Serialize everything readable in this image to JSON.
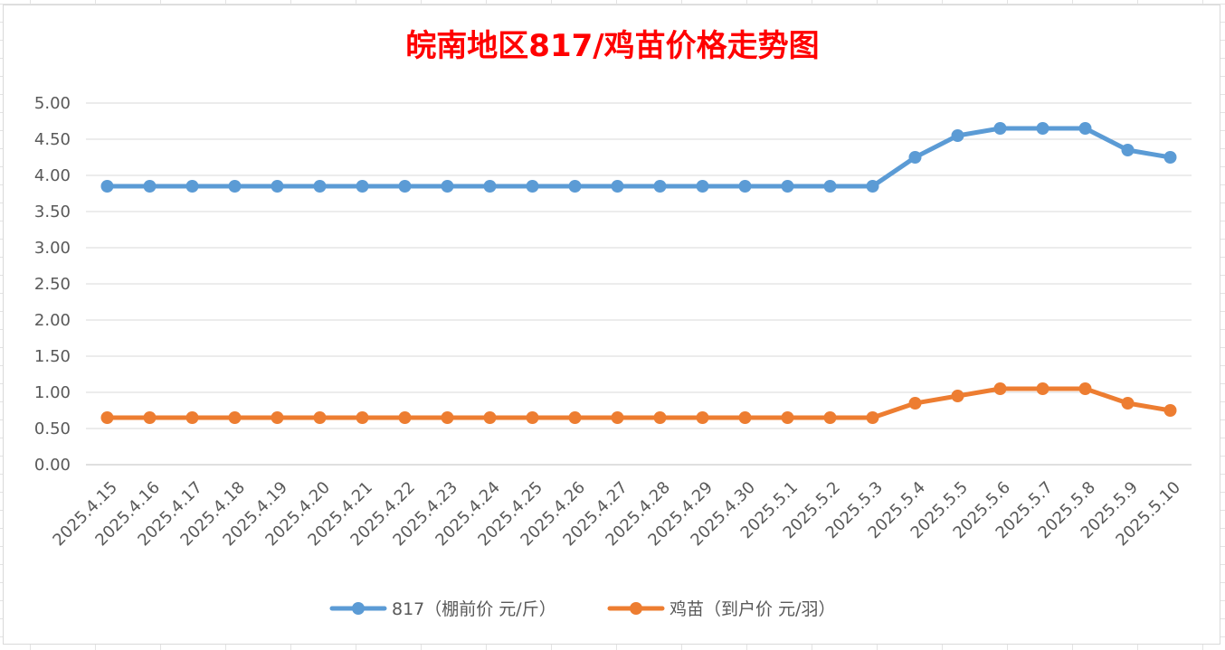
{
  "chart_data": {
    "type": "line",
    "title": "皖南地区817/鸡苗价格走势图",
    "title_color": "#ff0000",
    "xlabel": "",
    "ylabel": "",
    "ylim": [
      0,
      5
    ],
    "ytick_step": 0.5,
    "ytick_decimals": 2,
    "grid": true,
    "legend_position": "bottom",
    "categories": [
      "2025.4.15",
      "2025.4.16",
      "2025.4.17",
      "2025.4.18",
      "2025.4.19",
      "2025.4.20",
      "2025.4.21",
      "2025.4.22",
      "2025.4.23",
      "2025.4.24",
      "2025.4.25",
      "2025.4.26",
      "2025.4.27",
      "2025.4.28",
      "2025.4.29",
      "2025.4.30",
      "2025.5.1",
      "2025.5.2",
      "2025.5.3",
      "2025.5.4",
      "2025.5.5",
      "2025.5.6",
      "2025.5.7",
      "2025.5.8",
      "2025.5.9",
      "2025.5.10"
    ],
    "series": [
      {
        "name": "817（棚前价 元/斤）",
        "color": "#5b9bd5",
        "values": [
          3.85,
          3.85,
          3.85,
          3.85,
          3.85,
          3.85,
          3.85,
          3.85,
          3.85,
          3.85,
          3.85,
          3.85,
          3.85,
          3.85,
          3.85,
          3.85,
          3.85,
          3.85,
          3.85,
          4.25,
          4.55,
          4.65,
          4.65,
          4.65,
          4.35,
          4.25
        ]
      },
      {
        "name": "鸡苗（到户价 元/羽）",
        "color": "#ed7d31",
        "values": [
          0.65,
          0.65,
          0.65,
          0.65,
          0.65,
          0.65,
          0.65,
          0.65,
          0.65,
          0.65,
          0.65,
          0.65,
          0.65,
          0.65,
          0.65,
          0.65,
          0.65,
          0.65,
          0.65,
          0.85,
          0.95,
          1.05,
          1.05,
          1.05,
          0.85,
          0.75
        ]
      }
    ]
  }
}
